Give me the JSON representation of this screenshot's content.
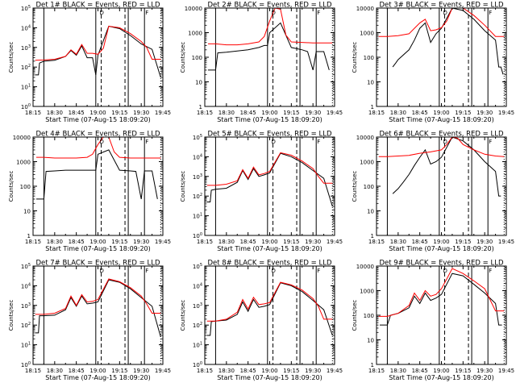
{
  "chart_data": {
    "type": "line",
    "x_ticks": [
      "18:15",
      "18:30",
      "18:45",
      "19:00",
      "19:15",
      "19:30",
      "19:45"
    ],
    "xlabel": "Start Time (07-Aug-15 18:09:20)",
    "ylabel": "Counts/sec",
    "y_scale": "log",
    "legend_markers": [
      "D",
      "F"
    ],
    "colors": {
      "events": "#000000",
      "lld": "#ff0000"
    },
    "panels": [
      {
        "title": "Det 1# BLACK = Events, RED = LLD",
        "ylim": [
          1,
          100000
        ],
        "y_ticks": [
          "10^0",
          "10^1",
          "10^2",
          "10^3",
          "10^4",
          "10^5"
        ],
        "series": [
          {
            "name": "BLACK = Events",
            "x": [
              0.2,
              0.5,
              0.6,
              1.0,
              2.0,
              3.0,
              3.5,
              4.0,
              4.5,
              5.0,
              5.5,
              5.8,
              6.0,
              7.0,
              8.0,
              9.0,
              10.0,
              11.0,
              11.8
            ],
            "y": [
              40,
              40,
              160,
              200,
              220,
              350,
              700,
              400,
              1200,
              300,
              300,
              40,
              400,
              12000,
              9000,
              4000,
              1500,
              800,
              30
            ]
          },
          {
            "name": "RED = LLD",
            "x": [
              0.2,
              1.0,
              2.0,
              3.0,
              3.5,
              4.0,
              4.5,
              5.0,
              5.5,
              6.0,
              6.5,
              7.0,
              8.0,
              9.0,
              10.0,
              10.5,
              11.0,
              11.8
            ],
            "y": [
              220,
              230,
              250,
              350,
              750,
              450,
              1400,
              500,
              500,
              450,
              900,
              12000,
              10000,
              5000,
              2000,
              1000,
              250,
              250
            ]
          }
        ]
      },
      {
        "title": "Det 2# BLACK = Events, RED = LLD",
        "ylim": [
          1,
          10000
        ],
        "y_ticks": [
          "1",
          "10",
          "100",
          "1000",
          "10000"
        ],
        "series": [
          {
            "name": "BLACK = Events",
            "x": [
              0.3,
              1.0,
              1.2,
              2.0,
              3.0,
              4.0,
              5.0,
              5.5,
              5.8,
              6.0,
              7.0,
              8.0,
              9.0,
              9.5,
              10.0,
              10.3,
              11.0,
              11.5
            ],
            "y": [
              30,
              30,
              150,
              160,
              180,
              200,
              250,
              300,
              300,
              1000,
              2500,
              250,
              200,
              170,
              30,
              170,
              170,
              30
            ]
          },
          {
            "name": "RED = LLD",
            "x": [
              0.3,
              1.0,
              2.0,
              3.0,
              4.0,
              5.0,
              5.5,
              6.0,
              6.5,
              7.0,
              7.5,
              8.0,
              9.0,
              10.0,
              11.0,
              11.8
            ],
            "y": [
              350,
              350,
              320,
              320,
              350,
              420,
              700,
              3000,
              10000,
              9000,
              800,
              420,
              400,
              380,
              380,
              380
            ]
          }
        ]
      },
      {
        "title": "Det 3# BLACK = Events, RED = LLD",
        "ylim": [
          1,
          10000
        ],
        "y_ticks": [
          "1",
          "10",
          "100",
          "1000",
          "10000"
        ],
        "series": [
          {
            "name": "BLACK = Events",
            "x": [
              1.5,
              1.8,
              2.0,
              3.0,
              3.5,
              4.0,
              4.5,
              5.0,
              5.5,
              6.0,
              7.0,
              8.0,
              9.0,
              10.0,
              11.0,
              11.3,
              11.5,
              11.7
            ],
            "y": [
              40,
              60,
              80,
              200,
              500,
              1500,
              2500,
              400,
              900,
              1500,
              10000,
              8000,
              3500,
              1200,
              500,
              40,
              40,
              20
            ]
          },
          {
            "name": "RED = LLD",
            "x": [
              0.2,
              1.0,
              2.0,
              3.0,
              3.5,
              4.0,
              4.5,
              5.0,
              5.5,
              6.0,
              6.5,
              7.0,
              8.0,
              9.0,
              10.0,
              11.0,
              11.8
            ],
            "y": [
              700,
              700,
              750,
              900,
              1500,
              2500,
              3500,
              1200,
              1300,
              1600,
              3000,
              12000,
              10000,
              5000,
              2000,
              700,
              700
            ]
          }
        ]
      },
      {
        "title": "Det 4# BLACK = Events, RED = LLD",
        "ylim": [
          1,
          10000
        ],
        "y_ticks": [
          "1",
          "10",
          "100",
          "1000",
          "10000"
        ],
        "series": [
          {
            "name": "BLACK = Events",
            "x": [
              0.3,
              1.0,
              1.2,
              2.0,
              3.0,
              4.0,
              5.0,
              5.5,
              5.8,
              6.0,
              7.0,
              8.0,
              9.0,
              9.5,
              10.0,
              10.3,
              11.0,
              11.5
            ],
            "y": [
              30,
              30,
              400,
              420,
              450,
              450,
              450,
              450,
              450,
              2000,
              3000,
              450,
              420,
              400,
              30,
              420,
              420,
              30
            ]
          },
          {
            "name": "RED = LLD",
            "x": [
              0.3,
              1.0,
              2.0,
              3.0,
              4.0,
              5.0,
              5.5,
              6.0,
              6.5,
              7.0,
              7.5,
              8.0,
              9.0,
              10.0,
              11.0,
              11.8
            ],
            "y": [
              1500,
              1500,
              1400,
              1400,
              1400,
              1500,
              2000,
              5000,
              12000,
              10000,
              2500,
              1500,
              1400,
              1400,
              1400,
              1400
            ]
          }
        ]
      },
      {
        "title": "Det 5# BLACK = Events, RED = LLD",
        "ylim": [
          1,
          100000
        ],
        "y_ticks": [
          "10^0",
          "10^1",
          "10^2",
          "10^3",
          "10^4",
          "10^5"
        ],
        "series": [
          {
            "name": "BLACK = Events",
            "x": [
              0.2,
              0.5,
              0.6,
              1.0,
              2.0,
              3.0,
              3.5,
              4.0,
              4.5,
              5.0,
              5.5,
              6.0,
              7.0,
              8.0,
              9.0,
              10.0,
              11.0,
              11.8
            ],
            "y": [
              50,
              50,
              200,
              220,
              250,
              500,
              2000,
              700,
              2500,
              1000,
              1200,
              1500,
              15000,
              10000,
              5000,
              2000,
              800,
              30
            ]
          },
          {
            "name": "RED = LLD",
            "x": [
              0.2,
              1.0,
              2.0,
              3.0,
              3.5,
              4.0,
              4.5,
              5.0,
              5.5,
              6.0,
              7.0,
              8.0,
              9.0,
              10.0,
              10.5,
              11.0,
              11.8
            ],
            "y": [
              350,
              350,
              400,
              600,
              2200,
              800,
              3000,
              1200,
              1400,
              1800,
              16000,
              12000,
              6000,
              2500,
              1000,
              450,
              450
            ]
          }
        ]
      },
      {
        "title": "Det 6# BLACK = Events, RED = LLD",
        "ylim": [
          1,
          10000
        ],
        "y_ticks": [
          "1",
          "10",
          "100",
          "1000",
          "10000"
        ],
        "series": [
          {
            "name": "BLACK = Events",
            "x": [
              1.5,
              2.0,
              2.5,
              3.0,
              3.5,
              4.0,
              4.5,
              5.0,
              5.5,
              6.0,
              7.0,
              8.0,
              9.0,
              10.0,
              11.0,
              11.3,
              11.5
            ],
            "y": [
              50,
              80,
              150,
              300,
              700,
              1500,
              3000,
              800,
              1000,
              1500,
              10000,
              7000,
              3000,
              1000,
              400,
              40,
              40
            ]
          },
          {
            "name": "RED = LLD",
            "x": [
              0.2,
              1.0,
              2.0,
              3.0,
              4.0,
              5.0,
              6.0,
              6.5,
              7.0,
              7.5,
              8.0,
              9.0,
              10.0,
              11.0,
              11.8
            ],
            "y": [
              1600,
              1600,
              1700,
              1800,
              2200,
              2500,
              3000,
              5000,
              12000,
              9000,
              5000,
              3000,
              2000,
              1700,
              1600
            ]
          }
        ]
      },
      {
        "title": "Det 7# BLACK = Events, RED = LLD",
        "ylim": [
          1,
          100000
        ],
        "y_ticks": [
          "10^0",
          "10^1",
          "10^2",
          "10^3",
          "10^4",
          "10^5"
        ],
        "series": [
          {
            "name": "BLACK = Events",
            "x": [
              0.2,
              0.5,
              0.6,
              1.0,
              2.0,
              3.0,
              3.5,
              4.0,
              4.5,
              5.0,
              5.5,
              6.0,
              7.0,
              8.0,
              9.0,
              10.0,
              11.0,
              11.8
            ],
            "y": [
              40,
              40,
              300,
              300,
              320,
              600,
              2500,
              900,
              3000,
              1200,
              1300,
              1500,
              20000,
              15000,
              7000,
              2500,
              900,
              25
            ]
          },
          {
            "name": "RED = LLD",
            "x": [
              0.2,
              1.0,
              2.0,
              3.0,
              3.5,
              4.0,
              4.5,
              5.0,
              5.5,
              6.0,
              7.0,
              8.0,
              9.0,
              10.0,
              10.5,
              11.0,
              11.8
            ],
            "y": [
              350,
              350,
              400,
              700,
              3000,
              1000,
              3500,
              1500,
              1600,
              2000,
              22000,
              16000,
              8000,
              3000,
              1200,
              400,
              400
            ]
          }
        ]
      },
      {
        "title": "Det 8# BLACK = Events, RED = LLD",
        "ylim": [
          1,
          100000
        ],
        "y_ticks": [
          "10^0",
          "10^1",
          "10^2",
          "10^3",
          "10^4",
          "10^5"
        ],
        "series": [
          {
            "name": "BLACK = Events",
            "x": [
              0.2,
              0.5,
              0.6,
              1.0,
              2.0,
              3.0,
              3.5,
              4.0,
              4.5,
              5.0,
              5.5,
              6.0,
              7.0,
              8.0,
              9.0,
              10.0,
              11.0,
              11.8
            ],
            "y": [
              30,
              30,
              150,
              160,
              180,
              350,
              1500,
              500,
              2000,
              800,
              900,
              1100,
              14000,
              10000,
              5000,
              1800,
              600,
              30
            ]
          },
          {
            "name": "RED = LLD",
            "x": [
              0.2,
              1.0,
              2.0,
              3.0,
              3.5,
              4.0,
              4.5,
              5.0,
              5.5,
              6.0,
              7.0,
              8.0,
              9.0,
              10.0,
              10.5,
              11.0,
              11.8
            ],
            "y": [
              160,
              160,
              200,
              450,
              2000,
              650,
              2600,
              1100,
              1200,
              1400,
              15000,
              11000,
              6000,
              2200,
              900,
              200,
              200
            ]
          }
        ]
      },
      {
        "title": "Det 9# BLACK = Events, RED = LLD",
        "ylim": [
          1,
          10000
        ],
        "y_ticks": [
          "1",
          "10",
          "100",
          "1000",
          "10000"
        ],
        "series": [
          {
            "name": "BLACK = Events",
            "x": [
              0.3,
              1.0,
              1.3,
              2.0,
              3.0,
              3.5,
              4.0,
              4.5,
              5.0,
              5.5,
              6.0,
              7.0,
              8.0,
              9.0,
              10.0,
              11.0,
              11.3,
              11.6
            ],
            "y": [
              40,
              40,
              100,
              120,
              200,
              600,
              300,
              800,
              400,
              500,
              700,
              5000,
              4000,
              1800,
              800,
              300,
              40,
              40
            ]
          },
          {
            "name": "RED = LLD",
            "x": [
              0.2,
              1.0,
              2.0,
              3.0,
              3.5,
              4.0,
              4.5,
              5.0,
              5.5,
              6.0,
              6.5,
              7.0,
              8.0,
              9.0,
              10.0,
              11.0,
              11.8
            ],
            "y": [
              90,
              90,
              120,
              250,
              800,
              400,
              1000,
              600,
              700,
              1200,
              3000,
              8000,
              5000,
              2500,
              1200,
              150,
              150
            ]
          }
        ]
      }
    ]
  }
}
